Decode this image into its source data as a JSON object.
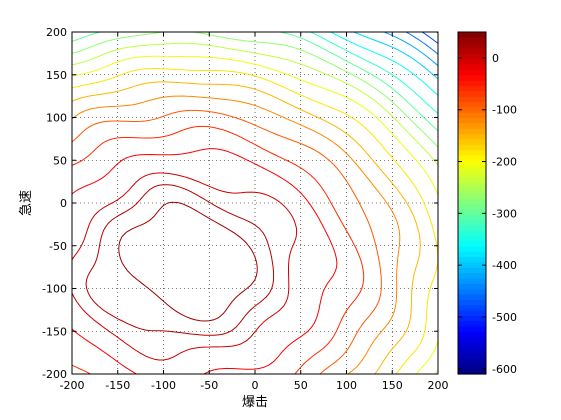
{
  "chart_data": {
    "type": "contour",
    "xlabel": "爆击",
    "ylabel": "急速",
    "xlim": [
      -200,
      200
    ],
    "ylim": [
      -200,
      200
    ],
    "xticks": [
      -200,
      -150,
      -100,
      -50,
      0,
      50,
      100,
      150,
      200
    ],
    "yticks": [
      -200,
      -150,
      -100,
      -50,
      0,
      50,
      100,
      150,
      200
    ],
    "grid": "dotted",
    "colormap": "jet",
    "colorbar": {
      "range": [
        -610,
        50
      ],
      "ticks": [
        0,
        -100,
        -200,
        -300,
        -400,
        -500,
        -600
      ]
    },
    "contour_levels": [
      -600,
      -570,
      -540,
      -510,
      -480,
      -450,
      -420,
      -390,
      -360,
      -330,
      -300,
      -270,
      -240,
      -210,
      -180,
      -150,
      -120,
      -90,
      -60,
      -30,
      0,
      15,
      30
    ],
    "surface_model": {
      "peak_x": -75,
      "peak_y": -70,
      "peak_value": 45,
      "sample_grid_step": 25
    }
  }
}
